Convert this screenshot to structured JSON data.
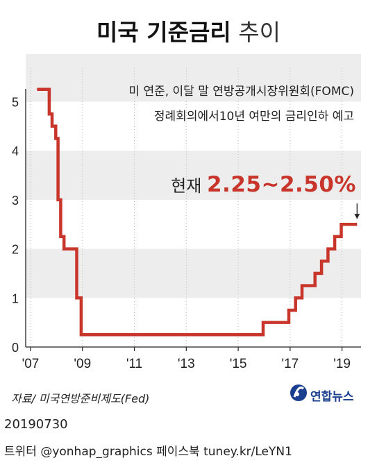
{
  "title": {
    "bold": "미국 기준금리",
    "light": "추이"
  },
  "annotation": {
    "line1": "미 연준, 이달 말 연방공개시장위원회(FOMC)",
    "line2": "정례회의에서10년 여만의 금리인하 예고"
  },
  "current": {
    "label": "현재",
    "value": "2.25~2.50%"
  },
  "source": "자료/ 미국연방준비제도(Fed)",
  "logo": {
    "text": "연합뉴스",
    "icon": "yonhap-logo-icon"
  },
  "date": "20190730",
  "social": "트위터 @yonhap_graphics  페이스북 tuney.kr/LeYN1",
  "colors": {
    "series": "#c8362b",
    "band": "#ededed",
    "grid": "#bbbbbb"
  },
  "chart_data": {
    "type": "line",
    "step": true,
    "x_unit": "year",
    "xlim": [
      2007.0,
      2020.0
    ],
    "ylim": [
      0,
      5.5
    ],
    "yticks": [
      0,
      1,
      2,
      3,
      4,
      5
    ],
    "xticks": [
      {
        "x": 2007,
        "label": "'07"
      },
      {
        "x": 2009,
        "label": "'09"
      },
      {
        "x": 2011,
        "label": "'11"
      },
      {
        "x": 2013,
        "label": "'13"
      },
      {
        "x": 2015,
        "label": "'15"
      },
      {
        "x": 2017,
        "label": "'17"
      },
      {
        "x": 2019,
        "label": "'19"
      }
    ],
    "grid": "alternating-bands",
    "series": [
      {
        "points": [
          [
            2007.25,
            5.25
          ],
          [
            2007.72,
            5.25
          ],
          [
            2007.72,
            4.75
          ],
          [
            2007.83,
            4.75
          ],
          [
            2007.83,
            4.5
          ],
          [
            2007.97,
            4.5
          ],
          [
            2007.97,
            4.25
          ],
          [
            2008.06,
            4.25
          ],
          [
            2008.06,
            3.0
          ],
          [
            2008.16,
            3.0
          ],
          [
            2008.16,
            2.25
          ],
          [
            2008.29,
            2.25
          ],
          [
            2008.29,
            2.0
          ],
          [
            2008.78,
            2.0
          ],
          [
            2008.78,
            1.0
          ],
          [
            2008.95,
            1.0
          ],
          [
            2008.95,
            0.25
          ],
          [
            2015.96,
            0.25
          ],
          [
            2015.96,
            0.5
          ],
          [
            2016.95,
            0.5
          ],
          [
            2016.95,
            0.75
          ],
          [
            2017.21,
            0.75
          ],
          [
            2017.21,
            1.0
          ],
          [
            2017.46,
            1.0
          ],
          [
            2017.46,
            1.25
          ],
          [
            2017.96,
            1.25
          ],
          [
            2017.96,
            1.5
          ],
          [
            2018.21,
            1.5
          ],
          [
            2018.21,
            1.75
          ],
          [
            2018.46,
            1.75
          ],
          [
            2018.46,
            2.0
          ],
          [
            2018.72,
            2.0
          ],
          [
            2018.72,
            2.25
          ],
          [
            2018.97,
            2.25
          ],
          [
            2018.97,
            2.5
          ],
          [
            2019.58,
            2.5
          ]
        ]
      }
    ],
    "markers": [
      {
        "x": 2019.58,
        "y": 2.5,
        "type": "arrow-down"
      }
    ]
  }
}
